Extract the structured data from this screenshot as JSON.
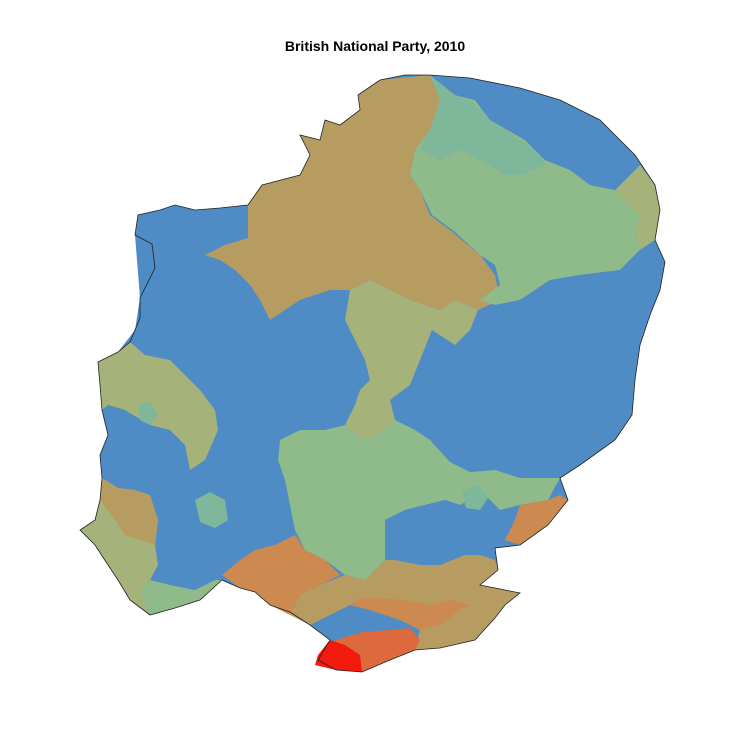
{
  "title": "British National Party, 2010",
  "colors": {
    "blue": "#4f8bc4",
    "teal": "#7fb79a",
    "light_green": "#8fba8a",
    "olive_green": "#a5b27a",
    "tan": "#b79c62",
    "tan_light": "#bfa465",
    "orange": "#cc8a50",
    "orange_red": "#dc6a3c",
    "red": "#f21a0d"
  }
}
